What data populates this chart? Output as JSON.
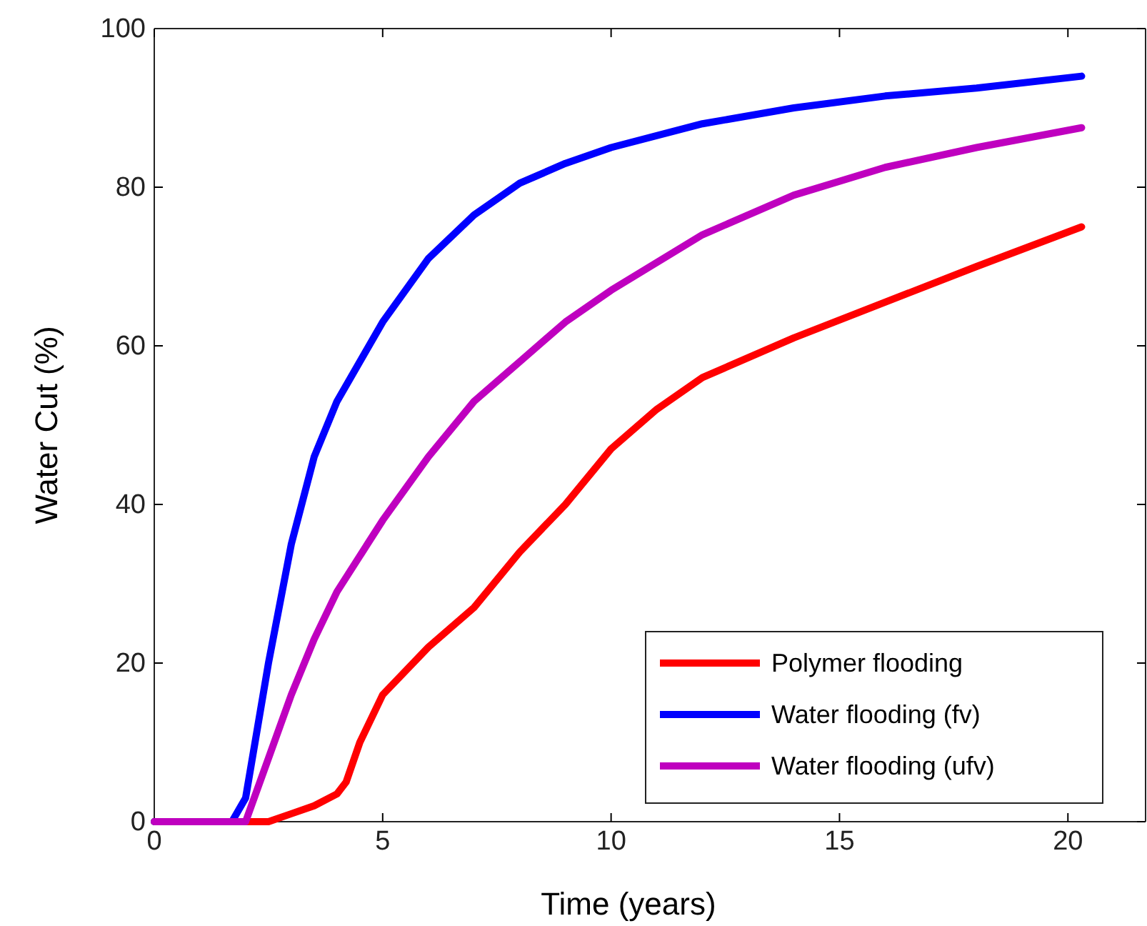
{
  "chart_data": {
    "type": "line",
    "xlabel": "Time (years)",
    "ylabel": "Water Cut (%)",
    "xlim": [
      0,
      21.7
    ],
    "ylim": [
      0,
      100
    ],
    "xticks": [
      0,
      5,
      10,
      15,
      20
    ],
    "yticks": [
      0,
      20,
      40,
      60,
      80,
      100
    ],
    "grid": false,
    "legend": "bottom right",
    "marker": "none",
    "line_style": "solid",
    "series": [
      {
        "name": "Polymer flooding",
        "color": "#ff0000",
        "x": [
          0,
          2.5,
          3,
          3.5,
          4,
          4.2,
          4.5,
          5,
          6,
          7,
          8,
          9,
          10,
          11,
          12,
          14,
          16,
          18,
          20.3
        ],
        "values": [
          0,
          0,
          1,
          2,
          3.5,
          5,
          10,
          16,
          22,
          27,
          34,
          40,
          47,
          52,
          56,
          61,
          65.5,
          70,
          75
        ]
      },
      {
        "name": "Water flooding (fv)",
        "color": "#0000ff",
        "x": [
          0,
          1.7,
          2,
          2.5,
          3,
          3.5,
          4,
          5,
          6,
          7,
          8,
          9,
          10,
          12,
          14,
          16,
          18,
          20.3
        ],
        "values": [
          0,
          0,
          3,
          20,
          35,
          46,
          53,
          63,
          71,
          76.5,
          80.5,
          83,
          85,
          88,
          90,
          91.5,
          92.5,
          94
        ]
      },
      {
        "name": "Water flooding (ufv)",
        "color": "#bf00bf",
        "x": [
          0,
          2,
          2.5,
          3,
          3.5,
          4,
          5,
          6,
          7,
          8,
          9,
          10,
          12,
          14,
          16,
          18,
          20.3
        ],
        "values": [
          0,
          0,
          8,
          16,
          23,
          29,
          38,
          46,
          53,
          58,
          63,
          67,
          74,
          79,
          82.5,
          85,
          87.5
        ]
      }
    ]
  }
}
